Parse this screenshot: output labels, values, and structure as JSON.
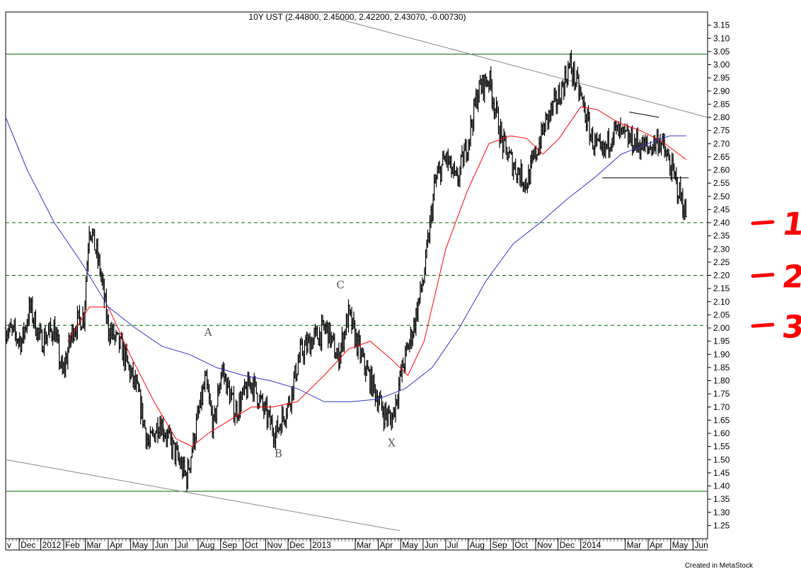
{
  "chart_data": {
    "type": "ohlc",
    "title": "10Y UST (2.44800, 2.45000, 2.42200, 2.43070, -0.00730)",
    "ylim": [
      1.2,
      3.2
    ],
    "y_ticks": [
      1.25,
      1.3,
      1.35,
      1.4,
      1.45,
      1.5,
      1.55,
      1.6,
      1.65,
      1.7,
      1.75,
      1.8,
      1.85,
      1.9,
      1.95,
      2.0,
      2.05,
      2.1,
      2.15,
      2.2,
      2.25,
      2.3,
      2.35,
      2.4,
      2.45,
      2.5,
      2.55,
      2.6,
      2.65,
      2.7,
      2.75,
      2.8,
      2.85,
      2.9,
      2.95,
      3.0,
      3.05,
      3.1,
      3.15
    ],
    "x_range": [
      2011.87,
      2014.47
    ],
    "x_ticks": [
      {
        "label": "v",
        "t": 2011.87
      },
      {
        "label": "Dec",
        "t": 2011.92
      },
      {
        "label": "2012",
        "t": 2012.0
      },
      {
        "label": "Feb",
        "t": 2012.085
      },
      {
        "label": "Mar",
        "t": 2012.165
      },
      {
        "label": "Apr",
        "t": 2012.25
      },
      {
        "label": "May",
        "t": 2012.333
      },
      {
        "label": "Jun",
        "t": 2012.416
      },
      {
        "label": "Jul",
        "t": 2012.5
      },
      {
        "label": "Aug",
        "t": 2012.583
      },
      {
        "label": "Sep",
        "t": 2012.666
      },
      {
        "label": "Oct",
        "t": 2012.75
      },
      {
        "label": "Nov",
        "t": 2012.833
      },
      {
        "label": "Dec",
        "t": 2012.916
      },
      {
        "label": "2013",
        "t": 2013.0
      },
      {
        "label": "Mar",
        "t": 2013.165
      },
      {
        "label": "Apr",
        "t": 2013.25
      },
      {
        "label": "May",
        "t": 2013.333
      },
      {
        "label": "Jun",
        "t": 2013.416
      },
      {
        "label": "Jul",
        "t": 2013.5
      },
      {
        "label": "Aug",
        "t": 2013.583
      },
      {
        "label": "Sep",
        "t": 2013.666
      },
      {
        "label": "Oct",
        "t": 2013.75
      },
      {
        "label": "Nov",
        "t": 2013.833
      },
      {
        "label": "Dec",
        "t": 2013.916
      },
      {
        "label": "2014",
        "t": 2014.0
      },
      {
        "label": "Mar",
        "t": 2014.165
      },
      {
        "label": "Apr",
        "t": 2014.25
      },
      {
        "label": "May",
        "t": 2014.333
      },
      {
        "label": "Jun",
        "t": 2014.416
      }
    ],
    "price_path": [
      [
        2011.87,
        2.0
      ],
      [
        2011.93,
        1.95
      ],
      [
        2011.96,
        2.08
      ],
      [
        2012.0,
        1.95
      ],
      [
        2012.05,
        2.0
      ],
      [
        2012.08,
        1.82
      ],
      [
        2012.12,
        2.0
      ],
      [
        2012.16,
        2.05
      ],
      [
        2012.18,
        2.4
      ],
      [
        2012.22,
        2.22
      ],
      [
        2012.25,
        2.0
      ],
      [
        2012.3,
        1.92
      ],
      [
        2012.36,
        1.75
      ],
      [
        2012.4,
        1.55
      ],
      [
        2012.44,
        1.65
      ],
      [
        2012.5,
        1.52
      ],
      [
        2012.54,
        1.43
      ],
      [
        2012.58,
        1.65
      ],
      [
        2012.61,
        1.8
      ],
      [
        2012.64,
        1.62
      ],
      [
        2012.67,
        1.85
      ],
      [
        2012.72,
        1.68
      ],
      [
        2012.78,
        1.8
      ],
      [
        2012.83,
        1.68
      ],
      [
        2012.87,
        1.6
      ],
      [
        2012.92,
        1.72
      ],
      [
        2012.96,
        1.9
      ],
      [
        2013.0,
        1.95
      ],
      [
        2013.06,
        2.0
      ],
      [
        2013.1,
        1.88
      ],
      [
        2013.14,
        2.05
      ],
      [
        2013.19,
        1.88
      ],
      [
        2013.23,
        1.78
      ],
      [
        2013.27,
        1.68
      ],
      [
        2013.3,
        1.65
      ],
      [
        2013.34,
        1.85
      ],
      [
        2013.38,
        2.0
      ],
      [
        2013.42,
        2.2
      ],
      [
        2013.46,
        2.55
      ],
      [
        2013.5,
        2.65
      ],
      [
        2013.54,
        2.55
      ],
      [
        2013.58,
        2.7
      ],
      [
        2013.62,
        2.9
      ],
      [
        2013.66,
        2.95
      ],
      [
        2013.71,
        2.7
      ],
      [
        2013.75,
        2.62
      ],
      [
        2013.8,
        2.55
      ],
      [
        2013.83,
        2.65
      ],
      [
        2013.87,
        2.78
      ],
      [
        2013.92,
        2.88
      ],
      [
        2013.96,
        3.0
      ],
      [
        2014.0,
        2.88
      ],
      [
        2014.04,
        2.72
      ],
      [
        2014.08,
        2.65
      ],
      [
        2014.12,
        2.75
      ],
      [
        2014.17,
        2.72
      ],
      [
        2014.21,
        2.7
      ],
      [
        2014.25,
        2.68
      ],
      [
        2014.29,
        2.72
      ],
      [
        2014.33,
        2.62
      ],
      [
        2014.37,
        2.5
      ],
      [
        2014.39,
        2.43
      ]
    ],
    "series": [
      {
        "color": "#ff0000",
        "points": [
          [
            2012.1,
            1.95
          ],
          [
            2012.18,
            2.08
          ],
          [
            2012.25,
            2.08
          ],
          [
            2012.33,
            1.9
          ],
          [
            2012.42,
            1.72
          ],
          [
            2012.5,
            1.58
          ],
          [
            2012.56,
            1.55
          ],
          [
            2012.62,
            1.6
          ],
          [
            2012.7,
            1.65
          ],
          [
            2012.78,
            1.7
          ],
          [
            2012.86,
            1.7
          ],
          [
            2012.95,
            1.72
          ],
          [
            2013.05,
            1.82
          ],
          [
            2013.14,
            1.92
          ],
          [
            2013.22,
            1.95
          ],
          [
            2013.3,
            1.88
          ],
          [
            2013.36,
            1.82
          ],
          [
            2013.42,
            1.95
          ],
          [
            2013.5,
            2.3
          ],
          [
            2013.58,
            2.52
          ],
          [
            2013.66,
            2.7
          ],
          [
            2013.74,
            2.73
          ],
          [
            2013.8,
            2.72
          ],
          [
            2013.86,
            2.66
          ],
          [
            2013.92,
            2.72
          ],
          [
            2014.0,
            2.84
          ],
          [
            2014.06,
            2.83
          ],
          [
            2014.14,
            2.78
          ],
          [
            2014.22,
            2.75
          ],
          [
            2014.3,
            2.71
          ],
          [
            2014.39,
            2.64
          ]
        ]
      },
      {
        "color": "#3333cc",
        "points": [
          [
            2011.87,
            2.8
          ],
          [
            2011.95,
            2.6
          ],
          [
            2012.05,
            2.4
          ],
          [
            2012.15,
            2.25
          ],
          [
            2012.25,
            2.08
          ],
          [
            2012.35,
            2.0
          ],
          [
            2012.45,
            1.93
          ],
          [
            2012.55,
            1.9
          ],
          [
            2012.65,
            1.85
          ],
          [
            2012.75,
            1.82
          ],
          [
            2012.85,
            1.8
          ],
          [
            2012.95,
            1.77
          ],
          [
            2013.05,
            1.72
          ],
          [
            2013.15,
            1.72
          ],
          [
            2013.25,
            1.73
          ],
          [
            2013.35,
            1.77
          ],
          [
            2013.45,
            1.85
          ],
          [
            2013.55,
            2.0
          ],
          [
            2013.65,
            2.18
          ],
          [
            2013.75,
            2.32
          ],
          [
            2013.85,
            2.4
          ],
          [
            2013.95,
            2.49
          ],
          [
            2014.05,
            2.57
          ],
          [
            2014.15,
            2.66
          ],
          [
            2014.25,
            2.7
          ],
          [
            2014.33,
            2.73
          ],
          [
            2014.39,
            2.73
          ]
        ]
      }
    ],
    "horizontal_lines": [
      {
        "y": 3.04,
        "style": "solid",
        "color": "#006600"
      },
      {
        "y": 1.38,
        "style": "solid",
        "color": "#006600"
      },
      {
        "y": 2.4,
        "style": "dashed",
        "color": "#006600"
      },
      {
        "y": 2.2,
        "style": "dashed",
        "color": "#006600"
      },
      {
        "y": 2.01,
        "style": "dashed",
        "color": "#006600"
      }
    ],
    "trendlines": [
      {
        "from": [
          2013.08,
          3.18
        ],
        "to": [
          2014.47,
          2.8
        ],
        "color": "#888888"
      },
      {
        "from": [
          2011.87,
          1.5
        ],
        "to": [
          2013.33,
          1.23
        ],
        "color": "#888888"
      },
      {
        "from": [
          2014.08,
          2.57
        ],
        "to": [
          2014.4,
          2.57
        ],
        "color": "#000000"
      },
      {
        "from": [
          2014.18,
          2.82
        ],
        "to": [
          2014.29,
          2.8
        ],
        "color": "#000000"
      }
    ],
    "annotations": [
      {
        "text": "A",
        "t": 2012.62,
        "y": 1.97
      },
      {
        "text": "B",
        "t": 2012.88,
        "y": 1.51
      },
      {
        "text": "C",
        "t": 2013.11,
        "y": 2.15
      },
      {
        "text": "X",
        "t": 2013.3,
        "y": 1.55
      }
    ],
    "handwritten_labels": [
      {
        "text": "1",
        "y": 2.4
      },
      {
        "text": "2",
        "y": 2.2
      },
      {
        "text": "3",
        "y": 2.01
      }
    ],
    "handwritten_color": "#ff0000"
  },
  "footer": {
    "text": "Created in MetaStock"
  }
}
